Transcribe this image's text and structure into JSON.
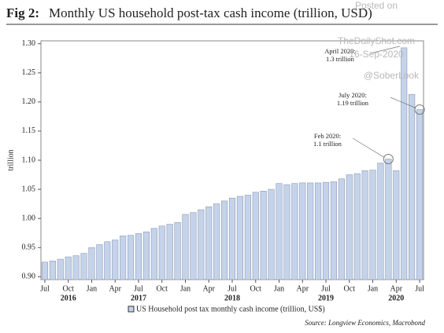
{
  "chart_data": {
    "type": "bar",
    "figure_label": "Fig 2:",
    "title": "Monthly US household post-tax cash income (trillion, USD)",
    "y_label": "trillion",
    "categories": [
      "Jul",
      null,
      null,
      "Oct",
      null,
      null,
      "Jan",
      null,
      null,
      "Apr",
      null,
      null,
      "Jul",
      null,
      null,
      "Oct",
      null,
      null,
      "Jan",
      null,
      null,
      "Apr",
      null,
      null,
      "Jul",
      null,
      null,
      "Oct",
      null,
      null,
      "Jan",
      null,
      null,
      "Apr",
      null,
      null,
      "Jul",
      null,
      null,
      "Oct",
      null,
      null,
      "Jan",
      null,
      null,
      "Apr",
      null,
      null,
      "Jul"
    ],
    "year_row": [
      null,
      null,
      null,
      "2016",
      null,
      null,
      null,
      null,
      null,
      null,
      null,
      null,
      "2017",
      null,
      null,
      null,
      null,
      null,
      null,
      null,
      null,
      null,
      null,
      null,
      "2018",
      null,
      null,
      null,
      null,
      null,
      null,
      null,
      null,
      null,
      null,
      null,
      "2019",
      null,
      null,
      null,
      null,
      null,
      null,
      null,
      null,
      "2020",
      null,
      null,
      null
    ],
    "series": [
      {
        "name": "US Household post tax monthly cash income (trillion, US$)",
        "color": "#c5d3ea",
        "values": [
          0.925,
          0.927,
          0.93,
          0.934,
          0.936,
          0.94,
          0.95,
          0.955,
          0.96,
          0.963,
          0.97,
          0.971,
          0.974,
          0.977,
          0.983,
          0.987,
          0.99,
          0.993,
          1.007,
          1.01,
          1.015,
          1.02,
          1.025,
          1.03,
          1.035,
          1.038,
          1.04,
          1.045,
          1.047,
          1.05,
          1.06,
          1.058,
          1.06,
          1.061,
          1.061,
          1.061,
          1.062,
          1.063,
          1.068,
          1.075,
          1.077,
          1.082,
          1.083,
          1.095,
          1.102,
          1.082,
          1.293,
          1.213,
          1.187
        ]
      }
    ],
    "ylim": [
      0.895,
      1.305
    ],
    "yticks": [
      {
        "value": 0.9,
        "label": "0.90"
      },
      {
        "value": 0.95,
        "label": "0.95"
      },
      {
        "value": 1.0,
        "label": "1.00"
      },
      {
        "value": 1.05,
        "label": "1.05"
      },
      {
        "value": 1.1,
        "label": "1.10"
      },
      {
        "value": 1.15,
        "label": "1.15"
      },
      {
        "value": 1.2,
        "label": "1.20"
      },
      {
        "value": 1.25,
        "label": "1.25"
      },
      {
        "value": 1.3,
        "label": "1.30"
      }
    ],
    "annotations": [
      {
        "lines": [
          "April 2020:",
          "1.3 trillion"
        ]
      },
      {
        "lines": [
          "July 2020:",
          "1.19 trillion"
        ]
      },
      {
        "lines": [
          "Feb 2020:",
          "1.1 trillion"
        ]
      }
    ],
    "watermark": [
      "Posted on",
      "TheDailyShot.com",
      "16-Sep-2020",
      "@SoberLook"
    ],
    "source": "Source: Longview Economics, Macrobond"
  }
}
